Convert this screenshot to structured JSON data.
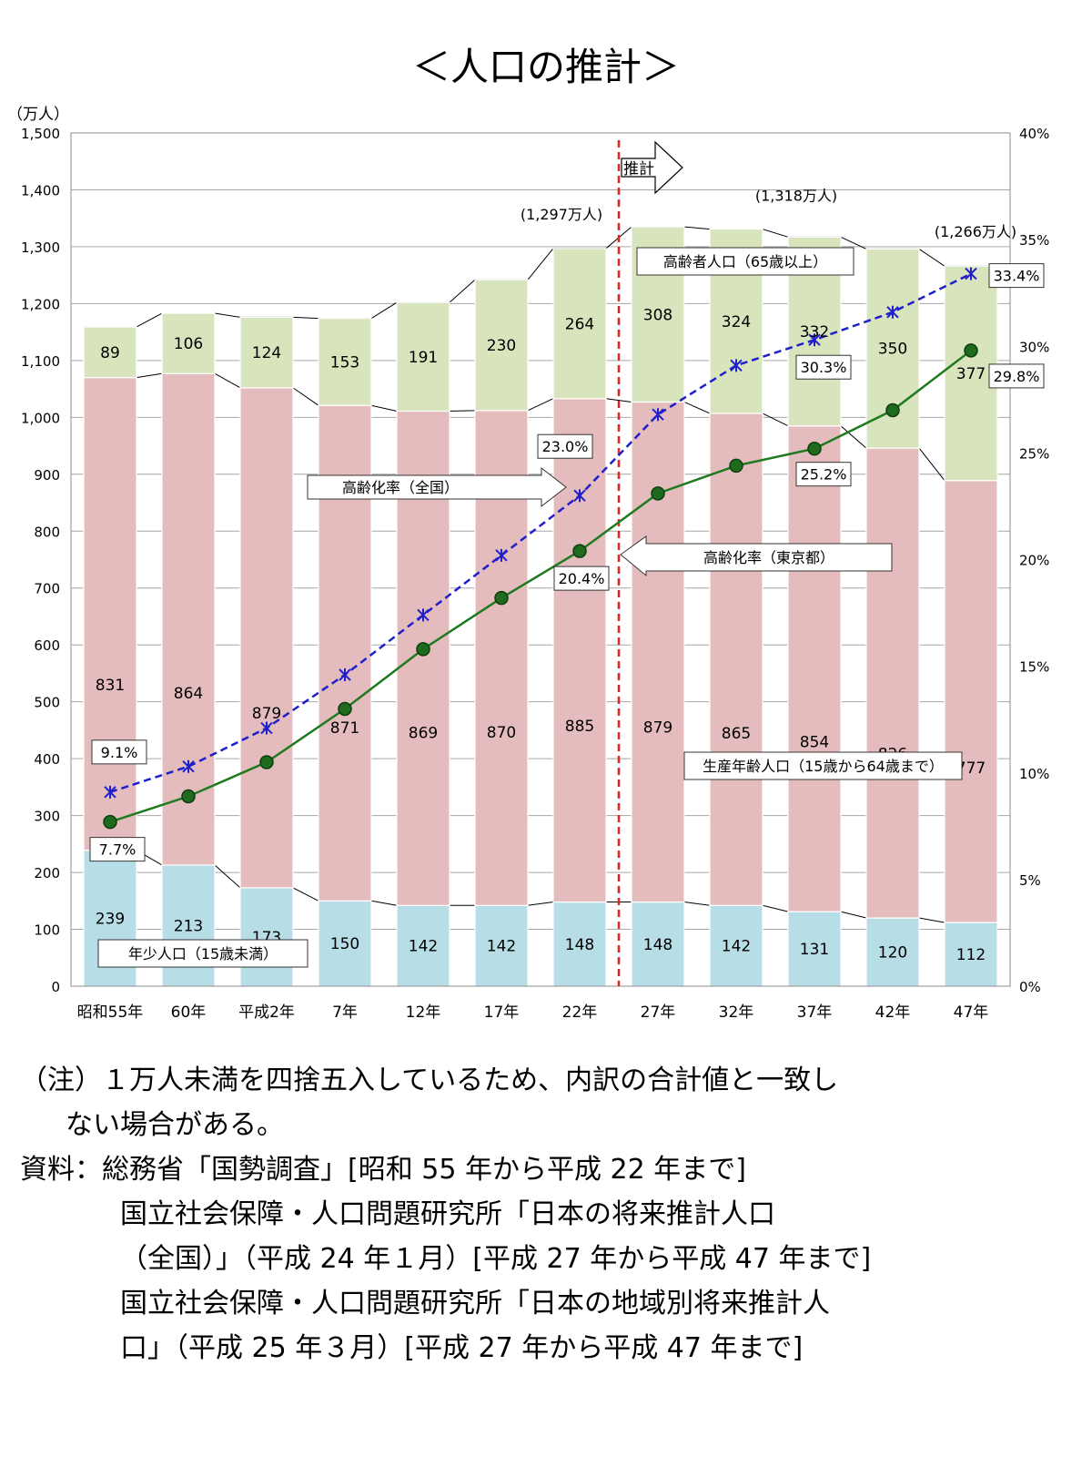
{
  "chart_data": {
    "type": "bar",
    "title": "＜人口の推計＞",
    "y_unit_label": "（万人）",
    "categories": [
      "昭和55年",
      "60年",
      "平成2年",
      "7年",
      "12年",
      "17年",
      "22年",
      "27年",
      "32年",
      "37年",
      "42年",
      "47年"
    ],
    "ylim": [
      0,
      1500
    ],
    "y_ticks": [
      "0",
      "100",
      "200",
      "300",
      "400",
      "500",
      "600",
      "700",
      "800",
      "900",
      "1,000",
      "1,100",
      "1,200",
      "1,300",
      "1,400",
      "1,500"
    ],
    "y2lim": [
      0,
      40
    ],
    "y2_ticks": [
      "0%",
      "5%",
      "10%",
      "15%",
      "20%",
      "25%",
      "30%",
      "35%",
      "40%"
    ],
    "stacked_series": [
      {
        "name": "年少人口（15歳未満）",
        "color": "#b7dde6",
        "values": [
          239,
          213,
          173,
          150,
          142,
          142,
          148,
          148,
          142,
          131,
          120,
          112
        ],
        "labels": [
          "239",
          "213",
          "173",
          "150",
          "142",
          "142",
          "148",
          "148",
          "142",
          "131",
          "120",
          "112"
        ]
      },
      {
        "name": "生産年齢人口（15歳から64歳まで）",
        "color": "#e4bcbd",
        "values": [
          831,
          864,
          879,
          871,
          869,
          870,
          885,
          879,
          865,
          854,
          826,
          777
        ],
        "labels": [
          "831",
          "864",
          "879",
          "871",
          "869",
          "870",
          "885",
          "879",
          "865",
          "854",
          "826",
          "777"
        ]
      },
      {
        "name": "高齢者人口（65歳以上）",
        "color": "#d8e4bc",
        "values": [
          89,
          106,
          124,
          153,
          191,
          230,
          264,
          308,
          324,
          332,
          350,
          377
        ],
        "labels": [
          "89",
          "106",
          "124",
          "153",
          "191",
          "230",
          "264",
          "308",
          "324",
          "332",
          "350",
          "377"
        ]
      }
    ],
    "totals": [
      {
        "index": 6,
        "label": "(1,297万人)"
      },
      {
        "index": 9,
        "label": "(1,318万人)"
      },
      {
        "index": 11,
        "label": "(1,266万人)"
      }
    ],
    "line_series": [
      {
        "name": "高齢化率（全国）",
        "color": "#1f1fcc",
        "style": "dashed",
        "marker": "x",
        "values": [
          9.1,
          10.3,
          12.1,
          14.6,
          17.4,
          20.2,
          23.0,
          26.8,
          29.1,
          30.3,
          31.6,
          33.4
        ]
      },
      {
        "name": "高齢化率（東京都）",
        "color": "#1e7a1e",
        "style": "solid",
        "marker": "circle",
        "values": [
          7.7,
          8.9,
          10.5,
          13.0,
          15.8,
          18.2,
          20.4,
          23.1,
          24.4,
          25.2,
          27.0,
          29.8
        ]
      }
    ],
    "rate_labels": [
      "9.1%",
      "7.7%",
      "23.0%",
      "20.4%",
      "30.3%",
      "25.2%",
      "33.4%",
      "29.8%"
    ],
    "projection_label": "推計",
    "projection_after_index": 6,
    "callouts": {
      "aged": "高齢者人口（65歳以上）",
      "working": "生産年齢人口（15歳から64歳まで）",
      "young": "年少人口（15歳未満）",
      "rate_national": "高齢化率（全国）",
      "rate_tokyo": "高齢化率（東京都）"
    }
  },
  "notes": {
    "note_line1": "（注）１万人未満を四捨五入しているため、内訳の合計値と一致し",
    "note_line2": "ない場合がある。",
    "source_label": "資料：",
    "source_line1": "総務省「国勢調査」[昭和 55 年から平成 22 年まで]",
    "source_line2": "国立社会保障・人口問題研究所「日本の将来推計人口",
    "source_line3": "（全国）」（平成 24 年１月）[平成 27 年から平成 47 年まで]",
    "source_line4": "国立社会保障・人口問題研究所「日本の地域別将来推計人",
    "source_line5": "口」（平成 25 年３月）[平成 27 年から平成 47 年まで]"
  }
}
